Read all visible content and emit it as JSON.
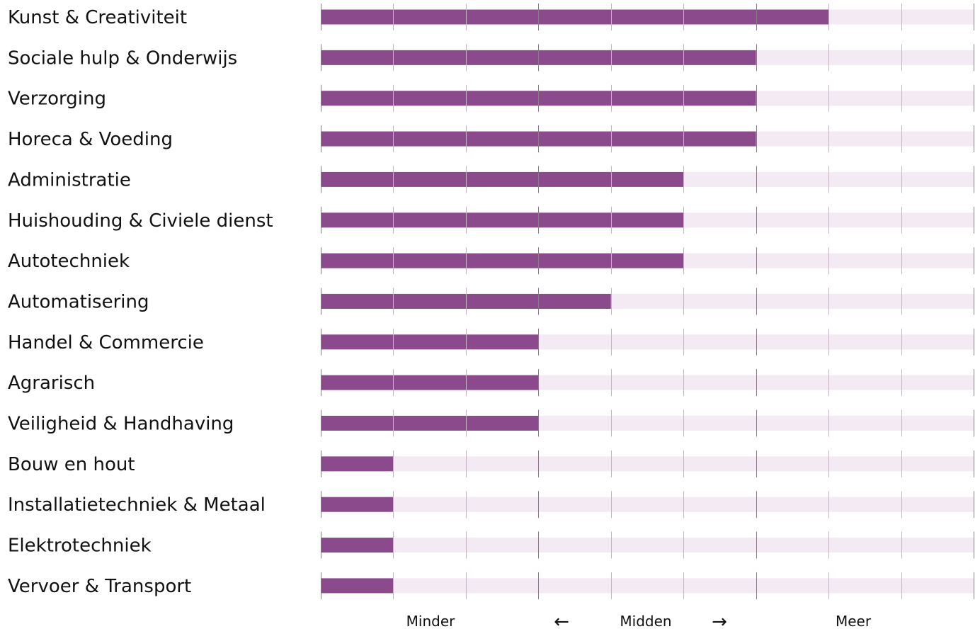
{
  "chart_data": {
    "type": "bar",
    "orientation": "horizontal",
    "categories": [
      "Kunst & Creativiteit",
      "Sociale hulp & Onderwijs",
      "Verzorging",
      "Horeca & Voeding",
      "Administratie",
      "Huishouding & Civiele dienst",
      "Autotechniek",
      "Automatisering",
      "Handel & Commercie",
      "Agrarisch",
      "Veiligheid & Handhaving",
      "Bouw en hout",
      "Installatietechniek & Metaal",
      "Elektrotechniek",
      "Vervoer & Transport"
    ],
    "values": [
      7,
      6,
      6,
      6,
      5,
      5,
      5,
      4,
      3,
      3,
      3,
      1,
      1,
      1,
      1
    ],
    "xlim": [
      0,
      9
    ],
    "scale_labels": {
      "low": "Minder",
      "mid": "Midden",
      "high": "Meer"
    },
    "arrows": {
      "left": "←",
      "right": "→"
    },
    "grid": true,
    "colors": {
      "bar": "#8b4a8c",
      "track": "#f3eaf3",
      "tick_minor": "#c4b4c4",
      "tick_major": "#8a7a8a"
    }
  }
}
